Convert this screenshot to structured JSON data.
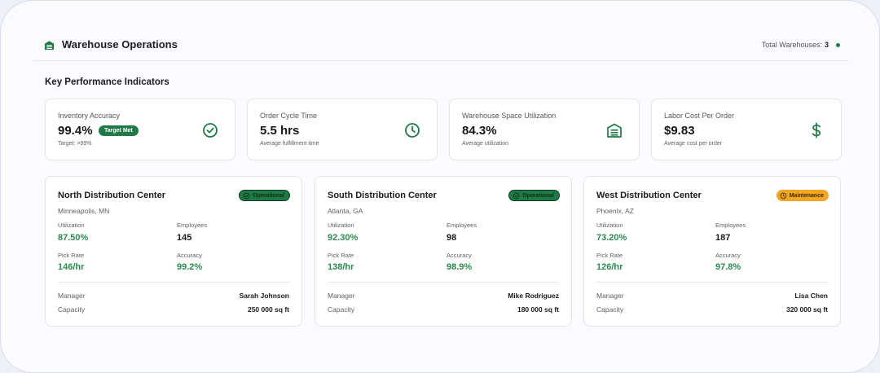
{
  "header": {
    "title": "Warehouse Operations",
    "total_label": "Total Warehouses:",
    "total_value": "3",
    "icon": "warehouse-icon"
  },
  "kpi_section_title": "Key Performance Indicators",
  "kpis": [
    {
      "label": "Inventory Accuracy",
      "value": "99.4%",
      "badge": "Target Met",
      "sub": "Target: >99%",
      "icon": "check-circle-icon"
    },
    {
      "label": "Order Cycle Time",
      "value": "5.5 hrs",
      "sub": "Average fulfillment time",
      "icon": "clock-icon"
    },
    {
      "label": "Warehouse Space Utilization",
      "value": "84.3%",
      "sub": "Average utilization",
      "icon": "warehouse-icon"
    },
    {
      "label": "Labor Cost Per Order",
      "value": "$9.83",
      "sub": "Average cost per order",
      "icon": "dollar-icon"
    }
  ],
  "centers": [
    {
      "name": "North Distribution Center",
      "location": "Minneapolis, MN",
      "status": "Operational",
      "utilization_label": "Utilization",
      "utilization": "87.50%",
      "employees_label": "Employees",
      "employees": "145",
      "pick_rate_label": "Pick Rate",
      "pick_rate": "146/hr",
      "accuracy_label": "Accuracy",
      "accuracy": "99.2%",
      "manager_label": "Manager",
      "manager": "Sarah Johnson",
      "capacity_label": "Capacity",
      "capacity": "250 000 sq ft"
    },
    {
      "name": "South Distribution Center",
      "location": "Atlanta, GA",
      "status": "Operational",
      "utilization_label": "Utilization",
      "utilization": "92.30%",
      "employees_label": "Employees",
      "employees": "98",
      "pick_rate_label": "Pick Rate",
      "pick_rate": "138/hr",
      "accuracy_label": "Accuracy",
      "accuracy": "98.9%",
      "manager_label": "Manager",
      "manager": "Mike Rodriguez",
      "capacity_label": "Capacity",
      "capacity": "180 000 sq ft"
    },
    {
      "name": "West Distribution Center",
      "location": "Phoenix, AZ",
      "status": "Maintenance",
      "utilization_label": "Utilization",
      "utilization": "73.20%",
      "employees_label": "Employees",
      "employees": "187",
      "pick_rate_label": "Pick Rate",
      "pick_rate": "126/hr",
      "accuracy_label": "Accuracy",
      "accuracy": "97.8%",
      "manager_label": "Manager",
      "manager": "Lisa Chen",
      "capacity_label": "Capacity",
      "capacity": "320 000 sq ft"
    }
  ],
  "colors": {
    "brand_green": "#1f7a45",
    "value_green": "#2a8a4f",
    "maintenance_orange": "#f5a623"
  }
}
